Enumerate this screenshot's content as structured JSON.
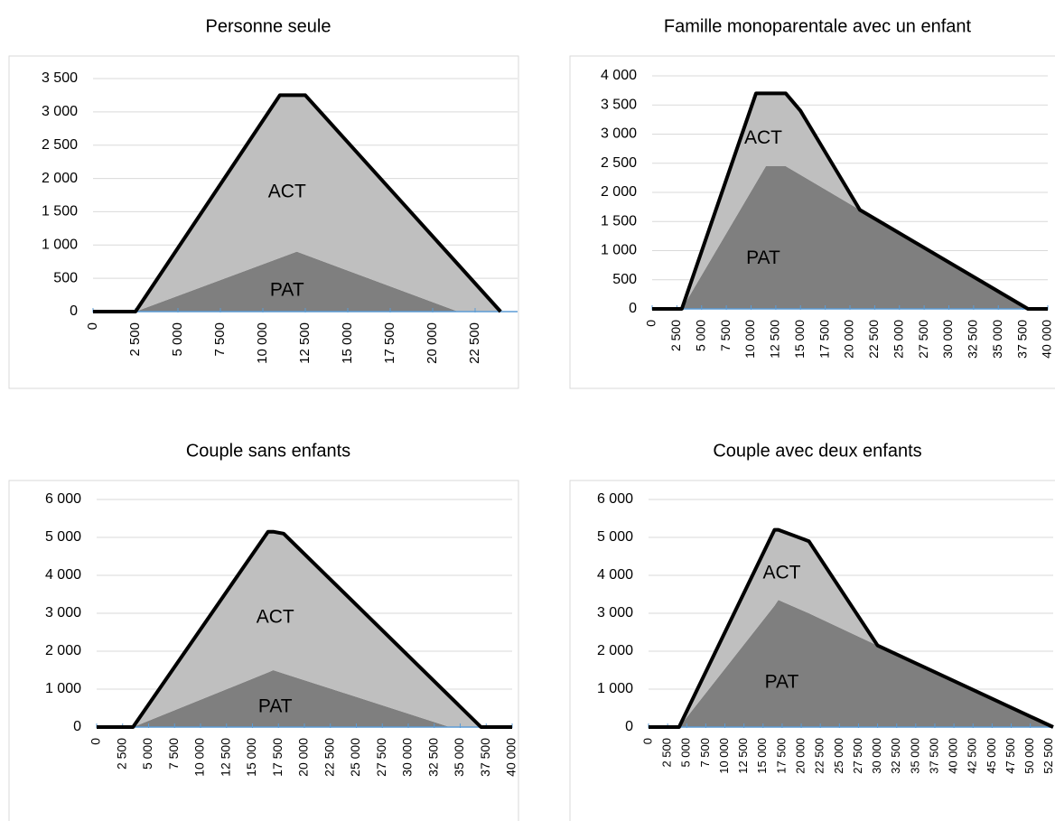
{
  "chart_data": [
    {
      "type": "area",
      "title": "Personne seule",
      "x": [
        0,
        2500,
        11000,
        12000,
        12500,
        21500,
        24000
      ],
      "series": [
        {
          "name": "PAT",
          "color": "#7f7f7f",
          "values": [
            0,
            0,
            805,
            900,
            853,
            0,
            0
          ]
        },
        {
          "name": "ACT",
          "color": "#bfbfbf",
          "values": [
            0,
            0,
            2445,
            2350,
            2397,
            707,
            0
          ]
        }
      ],
      "line_color": "#000000",
      "grid": true,
      "xlim": [
        0,
        25000
      ],
      "xticks": [
        0,
        {
          "value": 2500,
          "label": "2 500"
        },
        {
          "value": 5000,
          "label": "5 000"
        },
        {
          "value": 7500,
          "label": "7 500"
        },
        {
          "value": 10000,
          "label": "10 000"
        },
        {
          "value": 12500,
          "label": "12 500"
        },
        {
          "value": 15000,
          "label": "15 000"
        },
        {
          "value": 17500,
          "label": "17 500"
        },
        {
          "value": 20000,
          "label": "20 000"
        },
        {
          "value": 22500,
          "label": "22 500"
        }
      ],
      "ylim": [
        0,
        3500
      ],
      "yticks": [
        0,
        500,
        {
          "value": 1000,
          "label": "1 000"
        },
        {
          "value": 1500,
          "label": "1 500"
        },
        {
          "value": 2000,
          "label": "2 000"
        },
        {
          "value": 2500,
          "label": "2 500"
        },
        {
          "value": 3000,
          "label": "3 000"
        },
        {
          "value": 3500,
          "label": "3 500"
        }
      ]
    },
    {
      "type": "area",
      "title": "Famille monoparentale avec un enfant",
      "x": [
        0,
        3000,
        10500,
        11500,
        13500,
        15000,
        21000,
        38000,
        40000
      ],
      "series": [
        {
          "name": "PAT",
          "color": "#7f7f7f",
          "values": [
            0,
            0,
            2160,
            2450,
            2450,
            2300,
            1700,
            0,
            0
          ]
        },
        {
          "name": "ACT",
          "color": "#bfbfbf",
          "values": [
            0,
            0,
            1540,
            1250,
            1250,
            1100,
            0,
            0,
            0
          ]
        }
      ],
      "line_color": "#000000",
      "grid": true,
      "xlim": [
        0,
        40000
      ],
      "xticks": [
        0,
        {
          "value": 2500,
          "label": "2 500"
        },
        {
          "value": 5000,
          "label": "5 000"
        },
        {
          "value": 7500,
          "label": "7 500"
        },
        {
          "value": 10000,
          "label": "10 000"
        },
        {
          "value": 12500,
          "label": "12 500"
        },
        {
          "value": 15000,
          "label": "15 000"
        },
        {
          "value": 17500,
          "label": "17 500"
        },
        {
          "value": 20000,
          "label": "20 000"
        },
        {
          "value": 22500,
          "label": "22 500"
        },
        {
          "value": 25000,
          "label": "25 000"
        },
        {
          "value": 27500,
          "label": "27 500"
        },
        {
          "value": 30000,
          "label": "30 000"
        },
        {
          "value": 32500,
          "label": "32 500"
        },
        {
          "value": 35000,
          "label": "35 000"
        },
        {
          "value": 37500,
          "label": "37 500"
        },
        {
          "value": 40000,
          "label": "40 000"
        }
      ],
      "ylim": [
        0,
        4000
      ],
      "yticks": [
        0,
        500,
        {
          "value": 1000,
          "label": "1 000"
        },
        {
          "value": 1500,
          "label": "1 500"
        },
        {
          "value": 2000,
          "label": "2 000"
        },
        {
          "value": 2500,
          "label": "2 500"
        },
        {
          "value": 3000,
          "label": "3 000"
        },
        {
          "value": 3500,
          "label": "3 500"
        },
        {
          "value": 4000,
          "label": "4 000"
        }
      ]
    },
    {
      "type": "area",
      "title": "Couple sans enfants",
      "x": [
        0,
        3500,
        16500,
        17000,
        18000,
        34000,
        37000,
        40000
      ],
      "series": [
        {
          "name": "PAT",
          "color": "#7f7f7f",
          "values": [
            0,
            0,
            1440,
            1500,
            1412,
            0,
            0,
            0
          ]
        },
        {
          "name": "ACT",
          "color": "#bfbfbf",
          "values": [
            0,
            0,
            3710,
            3650,
            3688,
            805,
            0,
            0
          ]
        }
      ],
      "line_color": "#000000",
      "grid": true,
      "xlim": [
        0,
        40000
      ],
      "xticks": [
        0,
        {
          "value": 2500,
          "label": "2 500"
        },
        {
          "value": 5000,
          "label": "5 000"
        },
        {
          "value": 7500,
          "label": "7 500"
        },
        {
          "value": 10000,
          "label": "10 000"
        },
        {
          "value": 12500,
          "label": "12 500"
        },
        {
          "value": 15000,
          "label": "15 000"
        },
        {
          "value": 17500,
          "label": "17 500"
        },
        {
          "value": 20000,
          "label": "20 000"
        },
        {
          "value": 22500,
          "label": "22 500"
        },
        {
          "value": 25000,
          "label": "25 000"
        },
        {
          "value": 27500,
          "label": "27 500"
        },
        {
          "value": 30000,
          "label": "30 000"
        },
        {
          "value": 32500,
          "label": "32 500"
        },
        {
          "value": 35000,
          "label": "35 000"
        },
        {
          "value": 37500,
          "label": "37 500"
        },
        {
          "value": 40000,
          "label": "40 000"
        }
      ],
      "ylim": [
        0,
        6000
      ],
      "yticks": [
        0,
        {
          "value": 1000,
          "label": "1 000"
        },
        {
          "value": 2000,
          "label": "2 000"
        },
        {
          "value": 3000,
          "label": "3 000"
        },
        {
          "value": 4000,
          "label": "4 000"
        },
        {
          "value": 5000,
          "label": "5 000"
        },
        {
          "value": 6000,
          "label": "6 000"
        }
      ]
    },
    {
      "type": "area",
      "title": "Couple avec deux enfants",
      "x": [
        0,
        4000,
        16500,
        17000,
        21000,
        30000,
        53000
      ],
      "series": [
        {
          "name": "PAT",
          "color": "#7f7f7f",
          "values": [
            0,
            0,
            3200,
            3350,
            3000,
            2150,
            0
          ]
        },
        {
          "name": "ACT",
          "color": "#bfbfbf",
          "values": [
            0,
            0,
            2000,
            1850,
            1900,
            0,
            0
          ]
        }
      ],
      "line_color": "#000000",
      "grid": true,
      "xlim": [
        0,
        53000
      ],
      "xticks": [
        0,
        {
          "value": 2500,
          "label": "2 500"
        },
        {
          "value": 5000,
          "label": "5 000"
        },
        {
          "value": 7500,
          "label": "7 500"
        },
        {
          "value": 10000,
          "label": "10 000"
        },
        {
          "value": 12500,
          "label": "12 500"
        },
        {
          "value": 15000,
          "label": "15 000"
        },
        {
          "value": 17500,
          "label": "17 500"
        },
        {
          "value": 20000,
          "label": "20 000"
        },
        {
          "value": 22500,
          "label": "22 500"
        },
        {
          "value": 25000,
          "label": "25 000"
        },
        {
          "value": 27500,
          "label": "27 500"
        },
        {
          "value": 30000,
          "label": "30 000"
        },
        {
          "value": 32500,
          "label": "32 500"
        },
        {
          "value": 35000,
          "label": "35 000"
        },
        {
          "value": 37500,
          "label": "37 500"
        },
        {
          "value": 40000,
          "label": "40 000"
        },
        {
          "value": 42500,
          "label": "42 500"
        },
        {
          "value": 45000,
          "label": "45 000"
        },
        {
          "value": 47500,
          "label": "47 500"
        },
        {
          "value": 50000,
          "label": "50 000"
        },
        {
          "value": 52500,
          "label": "52 500"
        }
      ],
      "ylim": [
        0,
        6000
      ],
      "yticks": [
        0,
        {
          "value": 1000,
          "label": "1 000"
        },
        {
          "value": 2000,
          "label": "2 000"
        },
        {
          "value": 3000,
          "label": "3 000"
        },
        {
          "value": 4000,
          "label": "4 000"
        },
        {
          "value": 5000,
          "label": "5 000"
        },
        {
          "value": 6000,
          "label": "6 000"
        }
      ]
    }
  ]
}
